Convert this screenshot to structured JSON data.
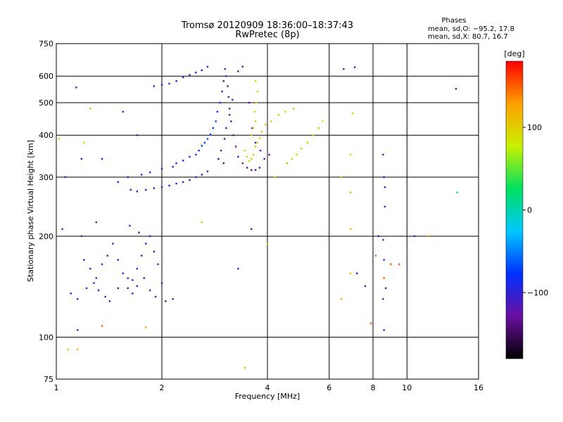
{
  "chart_data": {
    "type": "scatter",
    "title": "Tromsø 20120909 18:36:00–18:37:43",
    "subtitle": "RwPretec (8p)",
    "xlabel": "Frequency [MHz]",
    "ylabel": "Stationary phase Virtual Height [km]",
    "x_scale": "log",
    "y_scale": "log",
    "xlim": [
      1,
      16
    ],
    "ylim": [
      75,
      750
    ],
    "grid": true,
    "x_ticks": [
      1,
      2,
      4,
      6,
      8,
      10,
      16
    ],
    "x_tick_labels": [
      "1",
      "2",
      "4",
      "6",
      "8",
      "10",
      "16"
    ],
    "y_ticks": [
      75,
      100,
      200,
      300,
      400,
      500,
      600,
      750
    ],
    "y_tick_labels": [
      "75",
      "100",
      "200",
      "300",
      "400",
      "500",
      "600",
      "750"
    ],
    "legend": {
      "title": "Phases",
      "lines": [
        "mean, sd,O: −95.2, 17.8",
        "mean, sd,X:  80.7, 16.7"
      ]
    },
    "colorbar": {
      "label": "[deg]",
      "range": [
        -180,
        180
      ],
      "ticks": [
        100,
        0,
        -100
      ],
      "tick_labels": [
        "100",
        "0",
        "−100"
      ],
      "colormap": [
        "#000000",
        "#6a0fa0",
        "#0030ff",
        "#00c8ff",
        "#00e060",
        "#c8f000",
        "#ffa000",
        "#ff0000"
      ]
    },
    "series": [
      {
        "points": [
          [
            1.63,
            275,
            -100
          ],
          [
            1.7,
            272,
            -100
          ],
          [
            1.8,
            275,
            -95
          ],
          [
            1.9,
            278,
            -100
          ],
          [
            2.0,
            280,
            -95
          ],
          [
            2.1,
            283,
            -100
          ],
          [
            2.2,
            287,
            -90
          ],
          [
            2.3,
            290,
            -95
          ],
          [
            2.4,
            294,
            -100
          ],
          [
            2.5,
            300,
            -90
          ],
          [
            2.6,
            305,
            -95
          ],
          [
            2.7,
            312,
            -95
          ],
          [
            1.5,
            290,
            -100
          ],
          [
            1.6,
            300,
            -95
          ],
          [
            1.75,
            305,
            -100
          ],
          [
            1.85,
            310,
            -95
          ],
          [
            2.0,
            318,
            -90
          ],
          [
            2.15,
            322,
            -90
          ],
          [
            2.2,
            330,
            -85
          ],
          [
            2.3,
            336,
            -80
          ],
          [
            2.4,
            345,
            -80
          ],
          [
            2.5,
            350,
            -75
          ],
          [
            2.55,
            360,
            -80
          ],
          [
            2.6,
            372,
            -70
          ],
          [
            2.65,
            380,
            -75
          ],
          [
            2.7,
            390,
            -65
          ],
          [
            2.75,
            402,
            -70
          ],
          [
            2.8,
            420,
            -75
          ],
          [
            2.85,
            440,
            -70
          ],
          [
            2.88,
            470,
            -80
          ],
          [
            2.93,
            500,
            -90
          ],
          [
            2.97,
            540,
            -120
          ],
          [
            3.0,
            580,
            -130
          ],
          [
            3.03,
            630,
            -130
          ],
          [
            3.05,
            600,
            -125
          ],
          [
            3.08,
            560,
            -130
          ],
          [
            3.1,
            520,
            -125
          ],
          [
            3.12,
            480,
            -130
          ],
          [
            3.15,
            440,
            -130
          ],
          [
            3.2,
            400,
            -130
          ],
          [
            3.25,
            370,
            -125
          ],
          [
            3.3,
            345,
            -130
          ],
          [
            3.4,
            330,
            -130
          ],
          [
            3.5,
            320,
            -130
          ],
          [
            3.6,
            315,
            -125
          ],
          [
            3.7,
            315,
            -130
          ],
          [
            3.8,
            320,
            -125
          ],
          [
            2.9,
            340,
            -140
          ],
          [
            3.0,
            330,
            -135
          ],
          [
            2.95,
            360,
            -130
          ],
          [
            3.02,
            390,
            -130
          ],
          [
            3.05,
            420,
            -125
          ],
          [
            3.12,
            460,
            -120
          ],
          [
            3.18,
            510,
            -130
          ],
          [
            3.3,
            620,
            -120
          ],
          [
            3.4,
            640,
            -125
          ],
          [
            3.55,
            500,
            -130
          ],
          [
            3.62,
            420,
            -125
          ],
          [
            3.7,
            380,
            -130
          ],
          [
            3.82,
            360,
            -120
          ],
          [
            3.92,
            340,
            -125
          ],
          [
            4.05,
            350,
            -130
          ],
          [
            3.45,
            360,
            95
          ],
          [
            3.5,
            345,
            100
          ],
          [
            3.55,
            335,
            105
          ],
          [
            3.6,
            340,
            110
          ],
          [
            3.65,
            350,
            105
          ],
          [
            3.7,
            370,
            100
          ],
          [
            3.75,
            380,
            95
          ],
          [
            3.8,
            392,
            110
          ],
          [
            3.6,
            400,
            105
          ],
          [
            3.65,
            420,
            100
          ],
          [
            3.7,
            440,
            110
          ],
          [
            3.68,
            470,
            105
          ],
          [
            3.72,
            500,
            95
          ],
          [
            3.75,
            540,
            100
          ],
          [
            3.7,
            580,
            95
          ],
          [
            3.85,
            410,
            110
          ],
          [
            3.95,
            430,
            105
          ],
          [
            4.1,
            440,
            100
          ],
          [
            4.3,
            460,
            105
          ],
          [
            4.5,
            470,
            100
          ],
          [
            4.75,
            480,
            110
          ],
          [
            4.55,
            330,
            110
          ],
          [
            4.7,
            340,
            105
          ],
          [
            4.85,
            350,
            100
          ],
          [
            5.0,
            365,
            105
          ],
          [
            5.2,
            380,
            110
          ],
          [
            5.4,
            400,
            100
          ],
          [
            5.6,
            420,
            105
          ],
          [
            5.75,
            440,
            95
          ],
          [
            1.9,
            560,
            -100
          ],
          [
            2.0,
            565,
            -95
          ],
          [
            2.1,
            570,
            -105
          ],
          [
            2.2,
            580,
            -100
          ],
          [
            2.3,
            595,
            -95
          ],
          [
            2.4,
            605,
            -100
          ],
          [
            2.5,
            615,
            -105
          ],
          [
            2.6,
            625,
            -95
          ],
          [
            2.7,
            640,
            -100
          ],
          [
            1.55,
            470,
            -110
          ],
          [
            1.35,
            340,
            -100
          ],
          [
            1.7,
            400,
            -95
          ],
          [
            1.2,
            170,
            -110
          ],
          [
            1.25,
            160,
            -100
          ],
          [
            1.3,
            150,
            -115
          ],
          [
            1.35,
            165,
            -105
          ],
          [
            1.4,
            175,
            -100
          ],
          [
            1.45,
            190,
            -110
          ],
          [
            1.5,
            170,
            -115
          ],
          [
            1.55,
            155,
            -100
          ],
          [
            1.6,
            140,
            -110
          ],
          [
            1.65,
            148,
            -100
          ],
          [
            1.7,
            160,
            -105
          ],
          [
            1.75,
            175,
            -110
          ],
          [
            1.8,
            190,
            -95
          ],
          [
            1.85,
            200,
            -100
          ],
          [
            1.9,
            180,
            -105
          ],
          [
            1.95,
            165,
            -110
          ],
          [
            2.0,
            145,
            -100
          ],
          [
            1.1,
            135,
            -110
          ],
          [
            1.15,
            130,
            -115
          ],
          [
            1.22,
            140,
            -100
          ],
          [
            1.28,
            145,
            -105
          ],
          [
            1.32,
            138,
            -110
          ],
          [
            1.38,
            132,
            -100
          ],
          [
            1.42,
            128,
            -115
          ],
          [
            1.5,
            140,
            -110
          ],
          [
            1.6,
            150,
            -100
          ],
          [
            1.65,
            135,
            -105
          ],
          [
            1.7,
            142,
            -110
          ],
          [
            1.78,
            150,
            -100
          ],
          [
            1.85,
            138,
            -105
          ],
          [
            1.92,
            132,
            -110
          ],
          [
            2.05,
            128,
            -100
          ],
          [
            2.15,
            130,
            -110
          ],
          [
            1.18,
            200,
            -110
          ],
          [
            1.3,
            220,
            -105
          ],
          [
            1.62,
            215,
            -100
          ],
          [
            1.72,
            205,
            -110
          ],
          [
            1.06,
            300,
            -100
          ],
          [
            1.18,
            340,
            -100
          ],
          [
            1.2,
            380,
            100
          ],
          [
            1.14,
            555,
            -100
          ],
          [
            1.25,
            480,
            110
          ],
          [
            1.02,
            390,
            100
          ],
          [
            1.04,
            210,
            -110
          ],
          [
            1.15,
            105,
            -110
          ],
          [
            1.15,
            92,
            120
          ],
          [
            1.08,
            92,
            110
          ],
          [
            1.35,
            108,
            150
          ],
          [
            1.8,
            107,
            130
          ],
          [
            2.6,
            220,
            110
          ],
          [
            3.3,
            160,
            -110
          ],
          [
            3.6,
            210,
            -110
          ],
          [
            3.45,
            81,
            110
          ],
          [
            4.0,
            190,
            110
          ],
          [
            4.2,
            300,
            90
          ],
          [
            6.6,
            630,
            -110
          ],
          [
            7.1,
            638,
            -100
          ],
          [
            6.5,
            300,
            90
          ],
          [
            6.9,
            350,
            100
          ],
          [
            6.9,
            270,
            120
          ],
          [
            6.9,
            210,
            120
          ],
          [
            6.9,
            155,
            120
          ],
          [
            6.5,
            130,
            130
          ],
          [
            7.0,
            465,
            110
          ],
          [
            7.2,
            155,
            -100
          ],
          [
            7.6,
            142,
            -110
          ],
          [
            7.9,
            110,
            150
          ],
          [
            8.15,
            175,
            150
          ],
          [
            8.3,
            200,
            -110
          ],
          [
            8.65,
            245,
            -100
          ],
          [
            8.55,
            350,
            -100
          ],
          [
            8.6,
            300,
            -110
          ],
          [
            8.65,
            280,
            -100
          ],
          [
            8.55,
            195,
            -100
          ],
          [
            8.6,
            170,
            -100
          ],
          [
            8.6,
            150,
            150
          ],
          [
            8.7,
            140,
            -110
          ],
          [
            8.55,
            130,
            -100
          ],
          [
            8.6,
            105,
            -110
          ],
          [
            9.0,
            165,
            150
          ],
          [
            9.5,
            165,
            150
          ],
          [
            10.5,
            200,
            -100
          ],
          [
            11.5,
            200,
            130
          ],
          [
            13.8,
            550,
            -110
          ],
          [
            13.9,
            270,
            10
          ]
        ]
      }
    ]
  }
}
